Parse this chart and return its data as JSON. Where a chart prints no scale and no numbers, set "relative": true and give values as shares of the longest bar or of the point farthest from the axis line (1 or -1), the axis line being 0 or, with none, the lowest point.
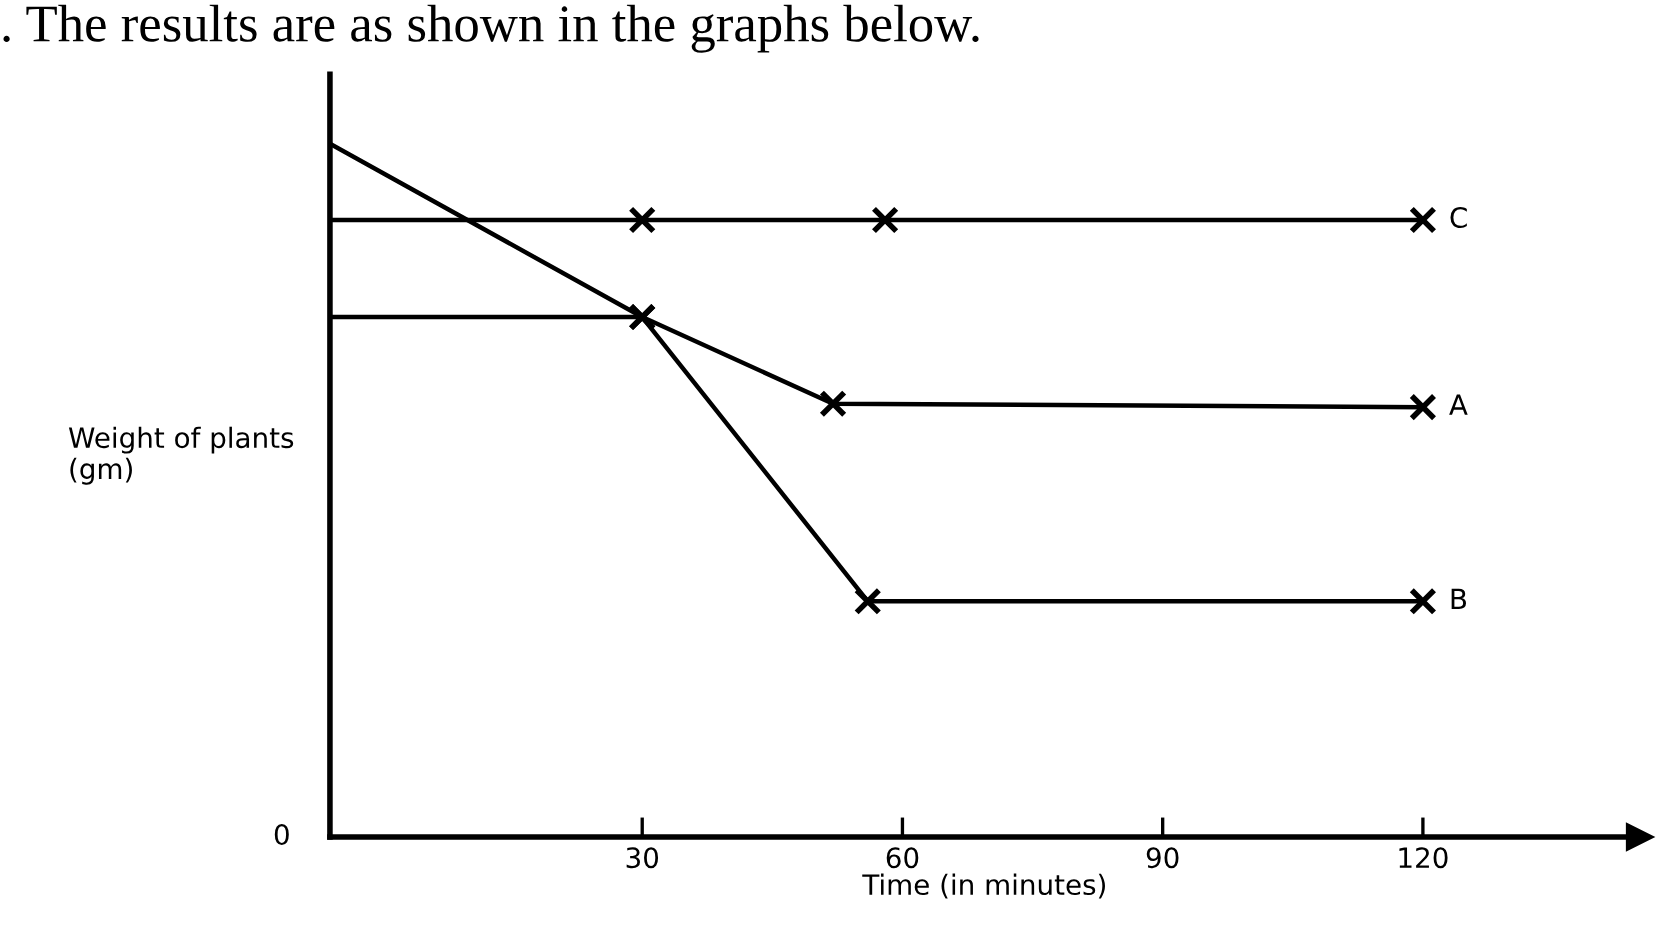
{
  "chart_data": {
    "type": "line",
    "relative": true,
    "title": ". The results are as shown in the graphs below.",
    "xlabel": "Time (in minutes)",
    "ylabel": "Weight of plants\n(gm)",
    "annotations": [
      "0"
    ],
    "xlim": [
      -6,
      145
    ],
    "xticks": [
      30,
      60,
      90,
      120
    ],
    "marker": "cross",
    "line_style": "solid",
    "grid": false,
    "legend": false,
    "series": [
      {
        "name": "C",
        "color": "#000000",
        "x": [
          -6,
          30,
          58,
          120
        ],
        "values": [
          0.89,
          0.89,
          0.89,
          0.89
        ]
      },
      {
        "name": "A",
        "color": "#000000",
        "x": [
          -6,
          30,
          52,
          120
        ],
        "values": [
          0.75,
          0.75,
          0.625,
          0.62
        ]
      },
      {
        "name": "B",
        "color": "#000000",
        "x": [
          -6,
          30,
          56,
          120
        ],
        "values": [
          1,
          0.75,
          0.34,
          0.34
        ]
      }
    ]
  }
}
